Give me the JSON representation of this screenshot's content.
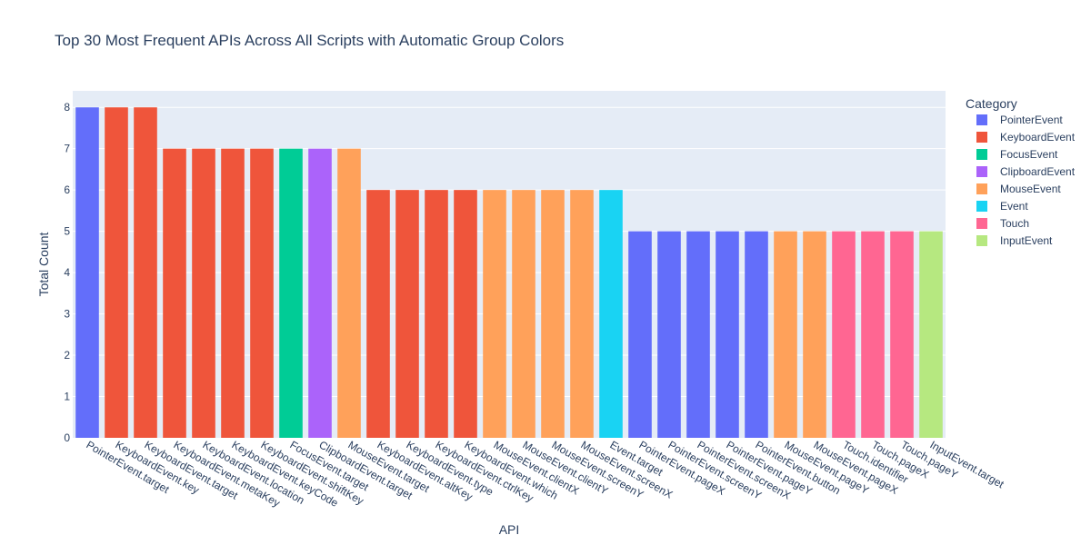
{
  "chart_data": {
    "type": "bar",
    "title": "Top 30 Most Frequent APIs Across All Scripts with Automatic Group Colors",
    "xlabel": "API",
    "ylabel": "Total Count",
    "ylim": [
      0,
      8.4
    ],
    "yticks": [
      0,
      1,
      2,
      3,
      4,
      5,
      6,
      7,
      8
    ],
    "grid": true,
    "legend": {
      "title": "Category",
      "position": "right"
    },
    "categories": [
      "PointerEvent.target",
      "KeyboardEvent.key",
      "KeyboardEvent.target",
      "KeyboardEvent.metaKey",
      "KeyboardEvent.location",
      "KeyboardEvent.keyCode",
      "KeyboardEvent.shiftKey",
      "FocusEvent.target",
      "ClipboardEvent.target",
      "MouseEvent.target",
      "KeyboardEvent.altKey",
      "KeyboardEvent.type",
      "KeyboardEvent.ctrlKey",
      "KeyboardEvent.which",
      "MouseEvent.clientX",
      "MouseEvent.clientY",
      "MouseEvent.screenY",
      "MouseEvent.screenX",
      "Event.target",
      "PointerEvent.pageX",
      "PointerEvent.screenY",
      "PointerEvent.screenX",
      "PointerEvent.pageY",
      "PointerEvent.button",
      "MouseEvent.pageY",
      "MouseEvent.pageX",
      "Touch.identifier",
      "Touch.pageX",
      "Touch.pageY",
      "InputEvent.target"
    ],
    "values": [
      8,
      8,
      8,
      7,
      7,
      7,
      7,
      7,
      7,
      7,
      6,
      6,
      6,
      6,
      6,
      6,
      6,
      6,
      6,
      5,
      5,
      5,
      5,
      5,
      5,
      5,
      5,
      5,
      5,
      5
    ],
    "groups": [
      "PointerEvent",
      "KeyboardEvent",
      "KeyboardEvent",
      "KeyboardEvent",
      "KeyboardEvent",
      "KeyboardEvent",
      "KeyboardEvent",
      "FocusEvent",
      "ClipboardEvent",
      "MouseEvent",
      "KeyboardEvent",
      "KeyboardEvent",
      "KeyboardEvent",
      "KeyboardEvent",
      "MouseEvent",
      "MouseEvent",
      "MouseEvent",
      "MouseEvent",
      "Event",
      "PointerEvent",
      "PointerEvent",
      "PointerEvent",
      "PointerEvent",
      "PointerEvent",
      "MouseEvent",
      "MouseEvent",
      "Touch",
      "Touch",
      "Touch",
      "InputEvent"
    ],
    "series": [
      {
        "name": "PointerEvent",
        "color": "#636efa"
      },
      {
        "name": "KeyboardEvent",
        "color": "#ef553b"
      },
      {
        "name": "FocusEvent",
        "color": "#00cc96"
      },
      {
        "name": "ClipboardEvent",
        "color": "#ab63fa"
      },
      {
        "name": "MouseEvent",
        "color": "#ffa15a"
      },
      {
        "name": "Event",
        "color": "#19d3f3"
      },
      {
        "name": "Touch",
        "color": "#ff6692"
      },
      {
        "name": "InputEvent",
        "color": "#b6e880"
      }
    ],
    "colors": {
      "plot_background": "#e5ecf6",
      "gridline": "#ffffff",
      "text": "#2a3f5f"
    }
  }
}
